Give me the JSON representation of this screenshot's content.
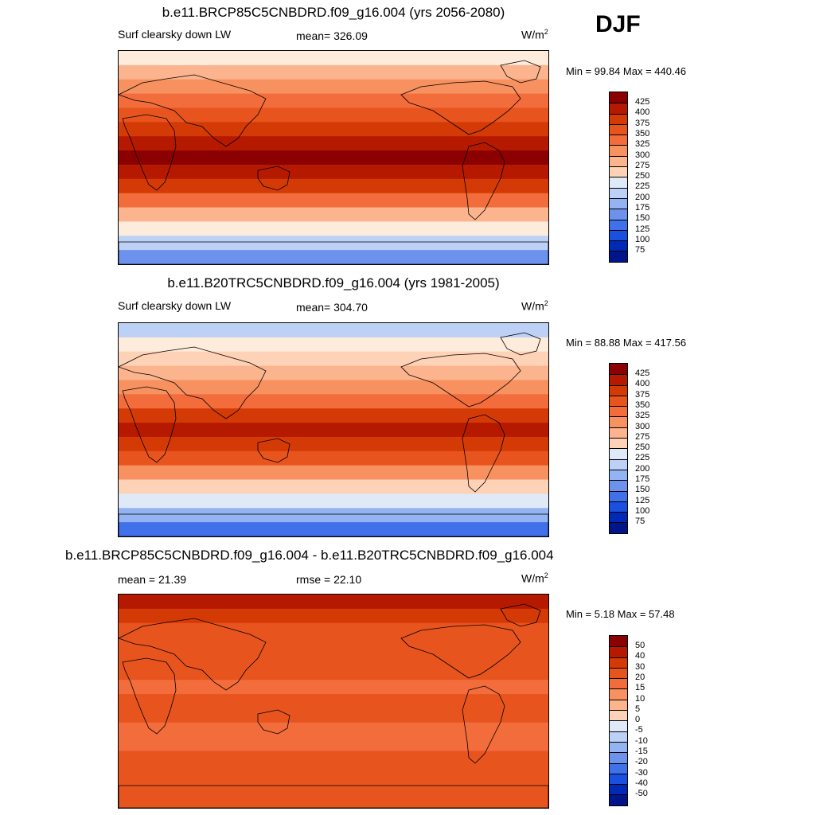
{
  "season": "DJF",
  "panels": [
    {
      "title": "b.e11.BRCP85C5CNBDRD.f09_g16.004 (yrs 2056-2080)",
      "left_label": "Surf clearsky down LW",
      "center_label": "mean= 326.09",
      "units": "W/m",
      "units_sup": "2",
      "minmax": "Min =  99.84 Max = 440.46",
      "palette": "full",
      "levels": [
        "425",
        "400",
        "375",
        "350",
        "325",
        "300",
        "275",
        "250",
        "225",
        "200",
        "175",
        "150",
        "125",
        "100",
        "75"
      ]
    },
    {
      "title": "b.e11.B20TRC5CNBDRD.f09_g16.004 (yrs 1981-2005)",
      "left_label": "Surf clearsky down LW",
      "center_label": "mean= 304.70",
      "units": "W/m",
      "units_sup": "2",
      "minmax": "Min =  88.88 Max = 417.56",
      "palette": "full",
      "levels": [
        "425",
        "400",
        "375",
        "350",
        "325",
        "300",
        "275",
        "250",
        "225",
        "200",
        "175",
        "150",
        "125",
        "100",
        "75"
      ]
    },
    {
      "title": "b.e11.BRCP85C5CNBDRD.f09_g16.004 - b.e11.B20TRC5CNBDRD.f09_g16.004",
      "left_label": "mean =  21.39",
      "center_label": "rmse =  22.10",
      "units": "W/m",
      "units_sup": "2",
      "minmax": "Min =   5.18 Max =  57.48",
      "palette": "diff",
      "levels": [
        "50",
        "40",
        "30",
        "20",
        "15",
        "10",
        "5",
        "0",
        "-5",
        "-10",
        "-15",
        "-20",
        "-30",
        "-40",
        "-50"
      ]
    }
  ],
  "colors": {
    "palette": [
      "#8b0000",
      "#b51a00",
      "#d43a05",
      "#e8541e",
      "#f26c3c",
      "#f79260",
      "#fbb48e",
      "#fdd2b6",
      "#fdebdc",
      "#dfe9f8",
      "#bcd1f5",
      "#93b3f2",
      "#6c92ee",
      "#4070ea",
      "#1a4fe0",
      "#0029b8",
      "#00158a"
    ]
  },
  "chart_data": [
    {
      "type": "heatmap",
      "title": "b.e11.BRCP85C5CNBDRD.f09_g16.004 (yrs 2056-2080)",
      "variable": "Surf clearsky down LW",
      "units": "W/m2",
      "mean": 326.09,
      "min": 99.84,
      "max": 440.46,
      "contour_levels": [
        75,
        100,
        125,
        150,
        175,
        200,
        225,
        250,
        275,
        300,
        325,
        350,
        375,
        400,
        425
      ],
      "zonal_band_levels": [
        225,
        275,
        300,
        325,
        350,
        375,
        400,
        425,
        400,
        375,
        325,
        275,
        225,
        175,
        125
      ]
    },
    {
      "type": "heatmap",
      "title": "b.e11.B20TRC5CNBDRD.f09_g16.004 (yrs 1981-2005)",
      "variable": "Surf clearsky down LW",
      "units": "W/m2",
      "mean": 304.7,
      "min": 88.88,
      "max": 417.56,
      "contour_levels": [
        75,
        100,
        125,
        150,
        175,
        200,
        225,
        250,
        275,
        300,
        325,
        350,
        375,
        400,
        425
      ],
      "zonal_band_levels": [
        175,
        225,
        250,
        275,
        300,
        325,
        375,
        400,
        375,
        350,
        300,
        250,
        200,
        150,
        100
      ]
    },
    {
      "type": "heatmap",
      "title": "b.e11.BRCP85C5CNBDRD.f09_g16.004 - b.e11.B20TRC5CNBDRD.f09_g16.004",
      "units": "W/m2",
      "mean": 21.39,
      "rmse": 22.1,
      "min": 5.18,
      "max": 57.48,
      "contour_levels": [
        -50,
        -40,
        -30,
        -20,
        -15,
        -10,
        -5,
        0,
        5,
        10,
        15,
        20,
        30,
        40,
        50
      ],
      "zonal_band_levels": [
        40,
        30,
        20,
        20,
        20,
        20,
        15,
        20,
        20,
        15,
        15,
        20,
        20,
        20,
        20
      ]
    }
  ]
}
